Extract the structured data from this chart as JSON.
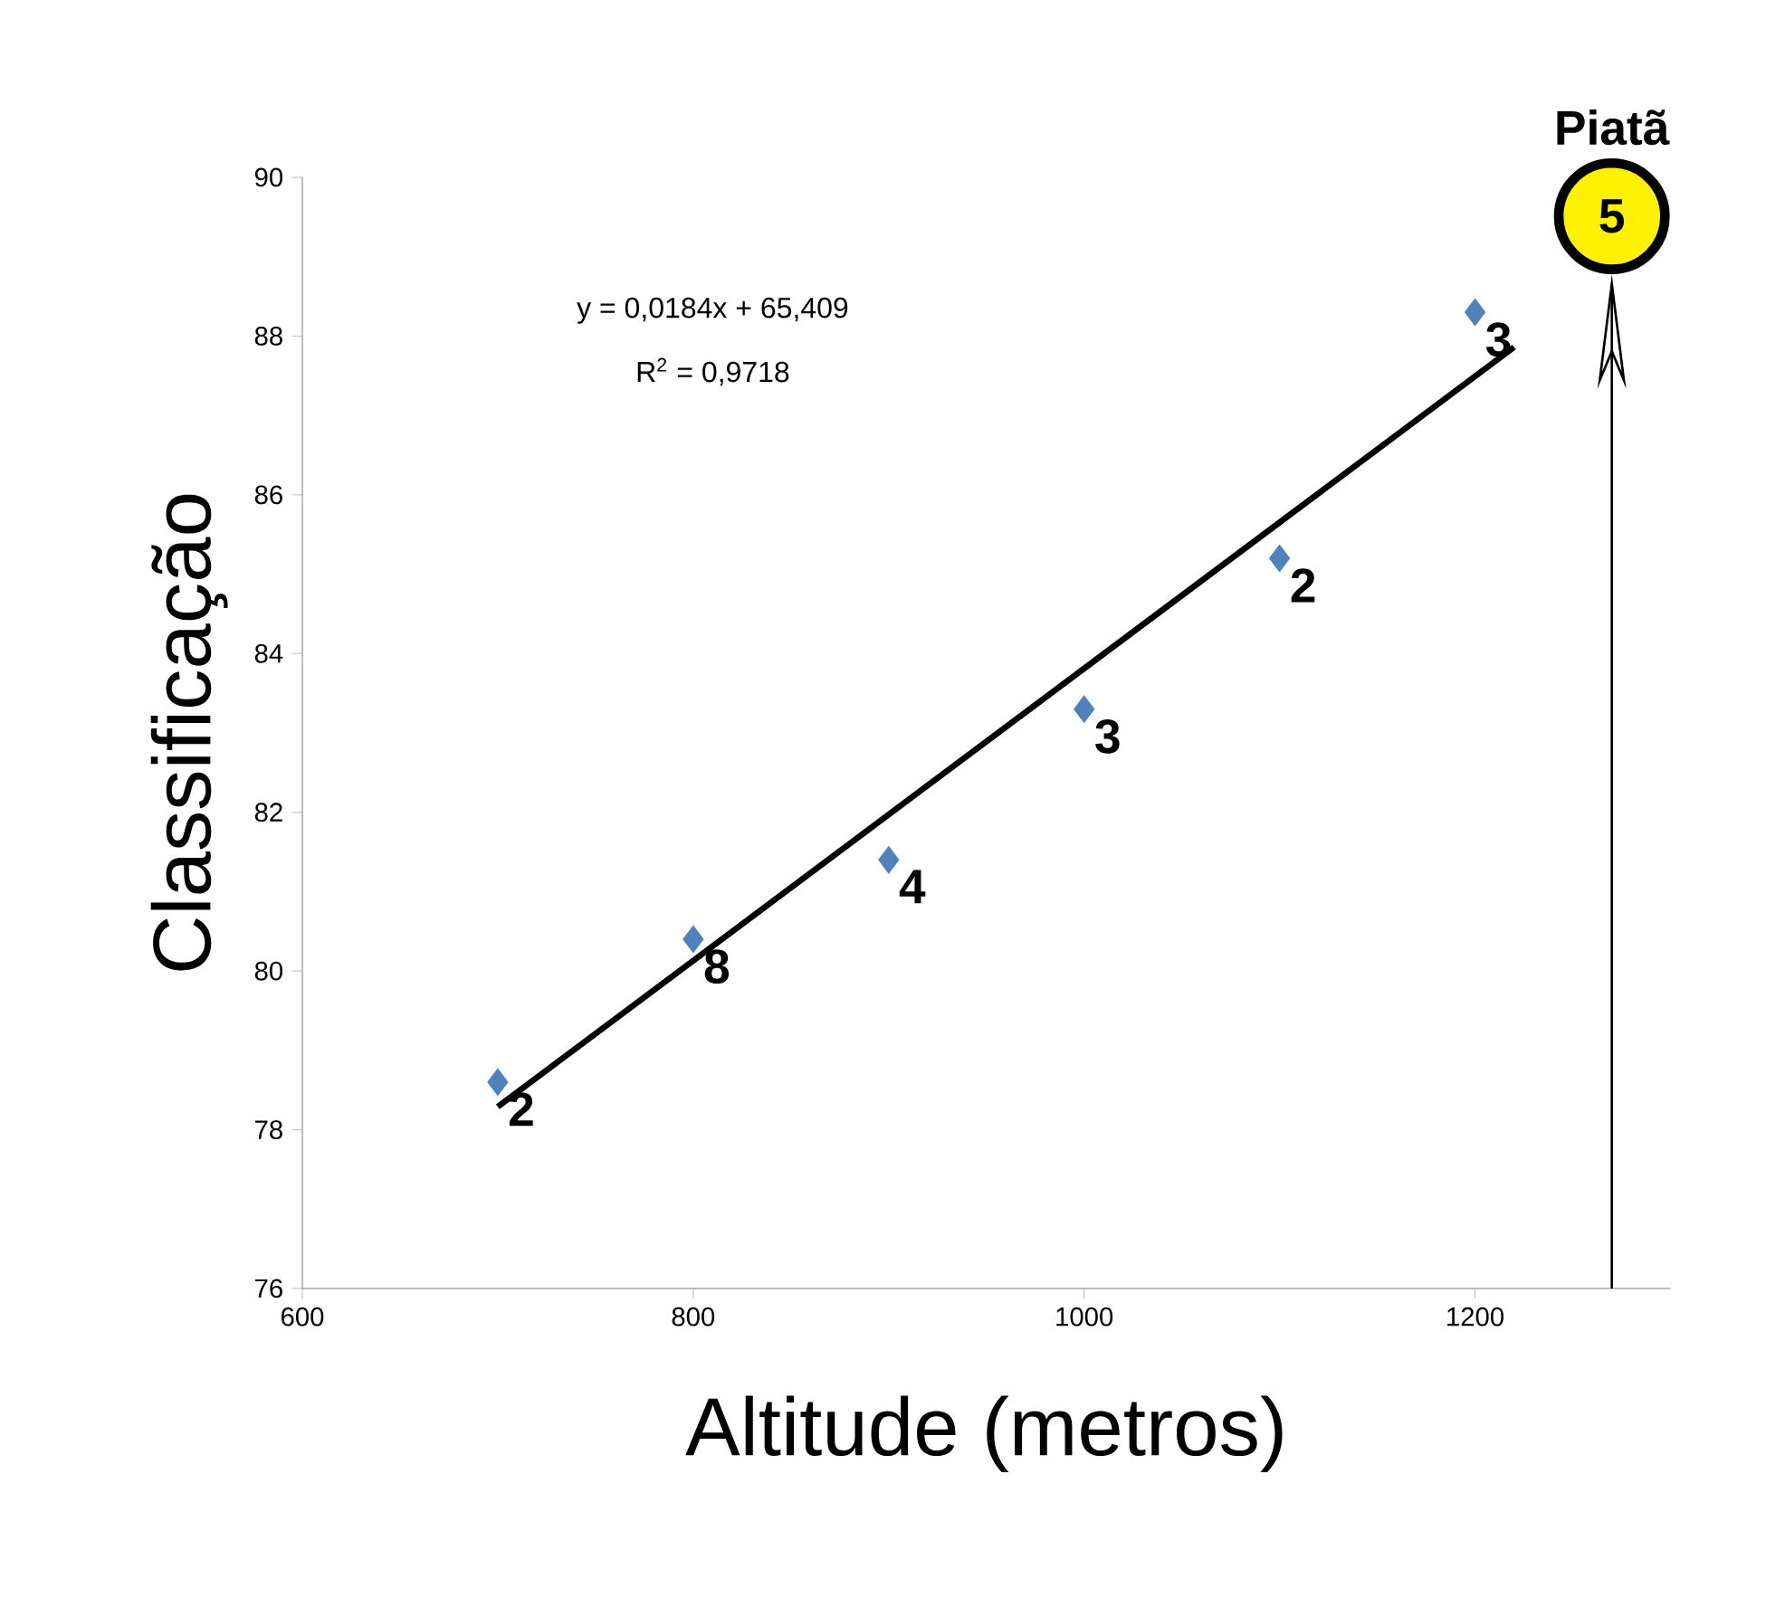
{
  "chart_data": {
    "type": "scatter",
    "xlabel": "Altitude (metros)",
    "ylabel": "Classificação",
    "xlim": [
      600,
      1300
    ],
    "xticks": [
      600,
      800,
      1000,
      1200
    ],
    "ylim": [
      76,
      90
    ],
    "yticks": [
      76,
      78,
      80,
      82,
      84,
      86,
      88,
      90
    ],
    "series": [
      {
        "color": "#4f81bd",
        "marker": "diamond",
        "x": [
          700,
          800,
          900,
          1000,
          1100,
          1200
        ],
        "values": [
          78.6,
          80.4,
          81.4,
          83.3,
          85.2,
          88.3
        ]
      },
      {
        "type": "line",
        "color": "#000000",
        "marker": "none",
        "line_style": "solid",
        "x": [
          700,
          1220
        ],
        "values": [
          78.29,
          87.86
        ]
      }
    ],
    "ref_lines": [
      {
        "axis": "x",
        "value": 1270,
        "label": "Piatã",
        "color": "#000000"
      }
    ],
    "annotations": [
      "y = 0,0184x + 65,409",
      "R$^{2}$ = 0,9718",
      "5",
      {
        "text": "2",
        "x": 700,
        "y": 78.6
      },
      {
        "text": "8",
        "x": 800,
        "y": 80.4
      },
      {
        "text": "4",
        "x": 900,
        "y": 81.4
      },
      {
        "text": "3",
        "x": 1000,
        "y": 83.3
      },
      {
        "text": "2",
        "x": 1100,
        "y": 85.2
      },
      {
        "text": "3",
        "x": 1200,
        "y": 88.3
      }
    ]
  }
}
